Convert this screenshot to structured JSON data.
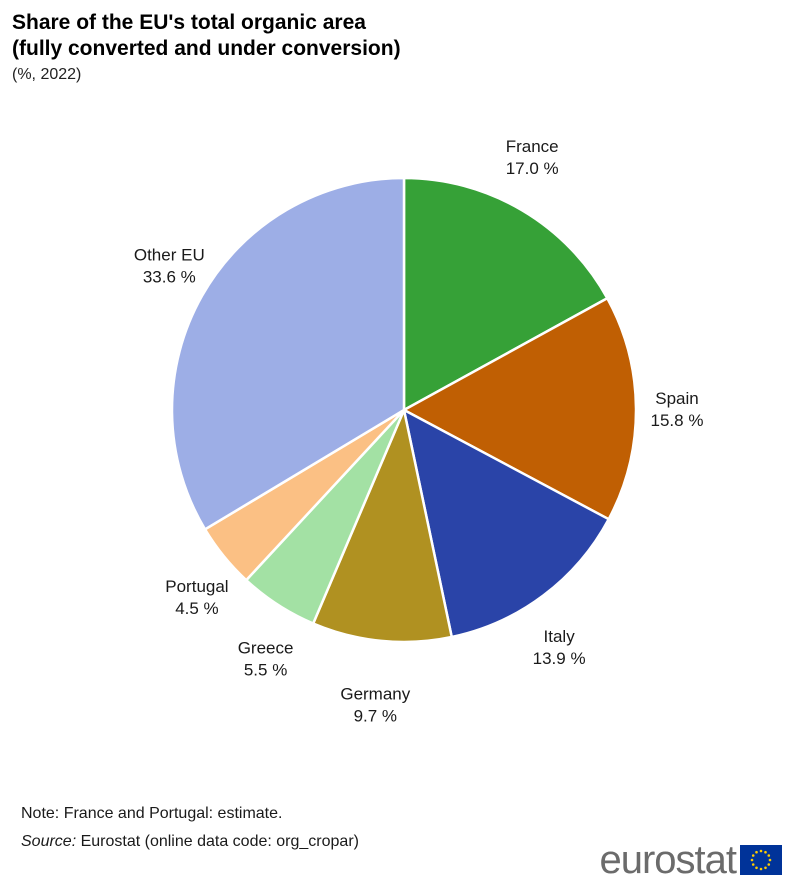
{
  "chart_data": {
    "type": "pie",
    "title_line1": "Share of the EU's total organic area",
    "title_line2": "(fully converted and under conversion)",
    "subtitle": "(%, 2022)",
    "start_angle_deg": 0,
    "direction": "clockwise",
    "slices": [
      {
        "label": "France",
        "value": 17.0,
        "value_label": "17.0 %",
        "color": "#36A137"
      },
      {
        "label": "Spain",
        "value": 15.8,
        "value_label": "15.8 %",
        "color": "#C05F03"
      },
      {
        "label": "Italy",
        "value": 13.9,
        "value_label": "13.9 %",
        "color": "#2A44A8"
      },
      {
        "label": "Germany",
        "value": 9.7,
        "value_label": "9.7 %",
        "color": "#B09121"
      },
      {
        "label": "Greece",
        "value": 5.5,
        "value_label": "5.5 %",
        "color": "#A3E1A4"
      },
      {
        "label": "Portugal",
        "value": 4.5,
        "value_label": "4.5 %",
        "color": "#FBC084"
      },
      {
        "label": "Other EU",
        "value": 33.6,
        "value_label": "33.6 %",
        "color": "#9DAEE6"
      }
    ]
  },
  "footer": {
    "note": "Note:  France and Portugal: estimate.",
    "source_label": "Source:",
    "source_text": " Eurostat (online data code: org_cropar)"
  },
  "logo": {
    "text": "eurostat",
    "flag_color": "#003399",
    "star_color": "#FFCC00"
  }
}
